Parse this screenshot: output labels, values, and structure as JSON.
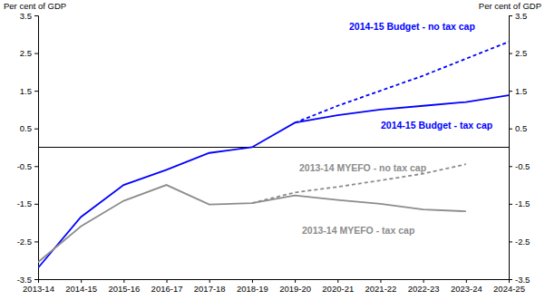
{
  "chart_data": {
    "type": "line",
    "y_label": "Per cent of GDP",
    "y2_label": "Per cent of GDP",
    "categories": [
      "2013-14",
      "2014-15",
      "2015-16",
      "2016-17",
      "2017-18",
      "2018-19",
      "2019-20",
      "2020-21",
      "2021-22",
      "2022-23",
      "2023-24",
      "2024-25"
    ],
    "series": [
      {
        "name": "2014-15 Budget - no tax cap",
        "color": "#0000ff",
        "line_style": "dashed",
        "values": [
          null,
          null,
          null,
          null,
          null,
          null,
          0.65,
          1.1,
          1.5,
          1.9,
          2.35,
          2.8
        ]
      },
      {
        "name": "2014-15 Budget - tax cap",
        "color": "#0000ff",
        "line_style": "solid",
        "values": [
          -3.2,
          -1.85,
          -1.0,
          -0.6,
          -0.15,
          0.0,
          0.65,
          0.85,
          1.0,
          1.1,
          1.2,
          1.38
        ]
      },
      {
        "name": "2013-14 MYEFO - no tax cap",
        "color": "#8c8c8c",
        "line_style": "dashed",
        "values": [
          null,
          null,
          null,
          null,
          null,
          -1.48,
          -1.2,
          -1.05,
          -0.88,
          -0.7,
          -0.45,
          null
        ]
      },
      {
        "name": "2013-14 MYEFO - tax cap",
        "color": "#8c8c8c",
        "line_style": "solid",
        "values": [
          -3.05,
          -2.1,
          -1.42,
          -1.0,
          -1.52,
          -1.48,
          -1.28,
          -1.4,
          -1.5,
          -1.65,
          -1.7,
          null
        ]
      }
    ],
    "ylim": [
      -3.5,
      3.5
    ],
    "yticks": [
      -3.5,
      -2.5,
      -1.5,
      -0.5,
      0.5,
      1.5,
      2.5,
      3.5
    ],
    "y2lim": [
      -3.5,
      3.5
    ],
    "y2ticks": [
      -3.5,
      -2.5,
      -1.5,
      -0.5,
      0.5,
      1.5,
      2.5,
      3.5
    ],
    "hlines": [
      0
    ],
    "grid": false,
    "legend": "none"
  }
}
